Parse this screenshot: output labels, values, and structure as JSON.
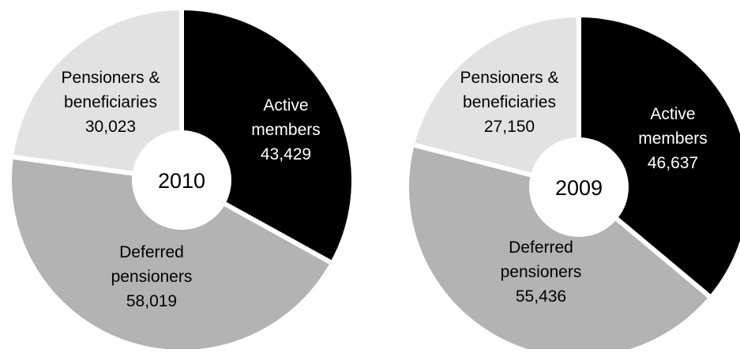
{
  "chart_data": [
    {
      "type": "donut",
      "center_label": "2010",
      "slices": [
        {
          "lines": [
            "Active",
            "members",
            "43,429"
          ],
          "value": 43429,
          "color": "#000000",
          "text_color": "#ffffff"
        },
        {
          "lines": [
            "Deferred",
            "pensioners",
            "58,019"
          ],
          "value": 58019,
          "color": "#b3b3b3",
          "text_color": "#000000"
        },
        {
          "lines": [
            "Pensioners &",
            "beneficiaries",
            "30,023"
          ],
          "value": 30023,
          "color": "#e2e2e2",
          "text_color": "#000000"
        }
      ]
    },
    {
      "type": "donut",
      "center_label": "2009",
      "slices": [
        {
          "lines": [
            "Active",
            "members",
            "46,637"
          ],
          "value": 46637,
          "color": "#000000",
          "text_color": "#ffffff"
        },
        {
          "lines": [
            "Deferred",
            "pensioners",
            "55,436"
          ],
          "value": 55436,
          "color": "#b3b3b3",
          "text_color": "#000000"
        },
        {
          "lines": [
            "Pensioners &",
            "beneficiaries",
            "27,150"
          ],
          "value": 27150,
          "color": "#e2e2e2",
          "text_color": "#000000"
        }
      ]
    }
  ]
}
